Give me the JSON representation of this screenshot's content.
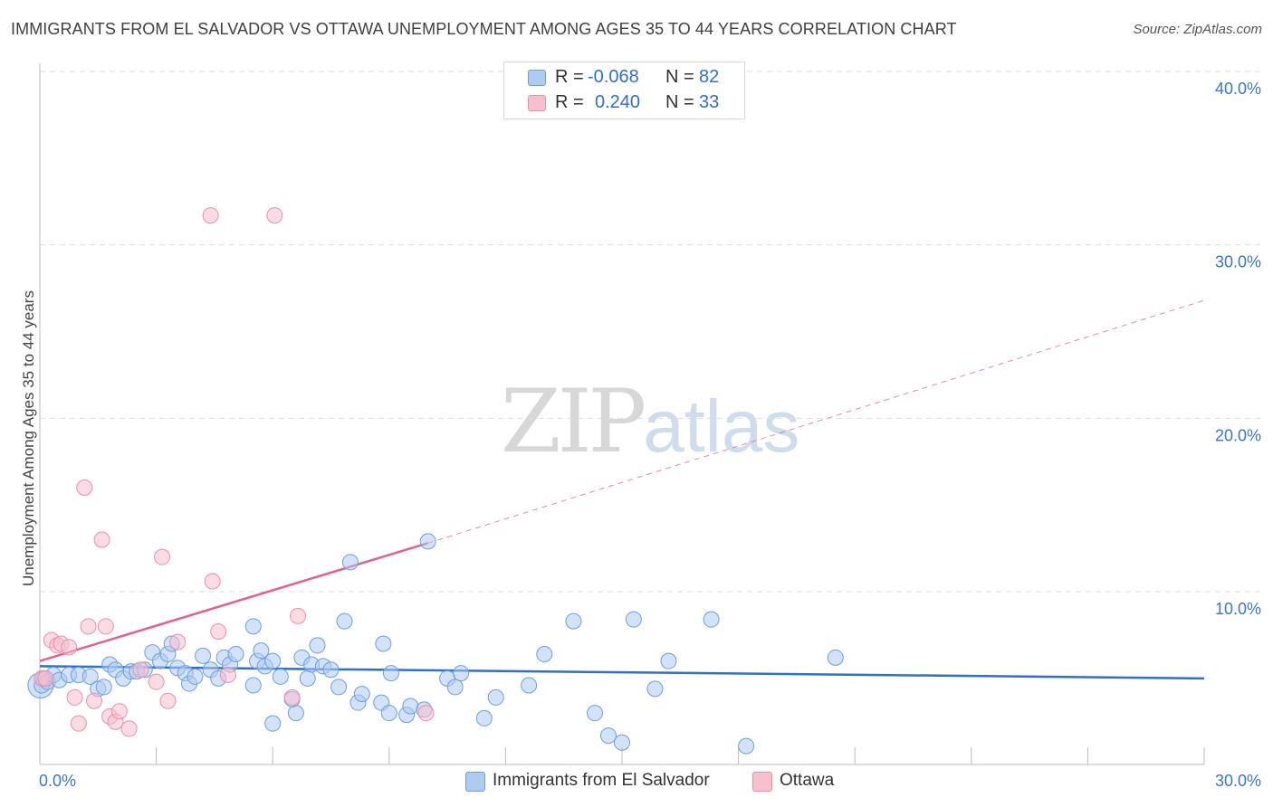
{
  "header": {
    "title": "IMMIGRANTS FROM EL SALVADOR VS OTTAWA UNEMPLOYMENT AMONG AGES 35 TO 44 YEARS CORRELATION CHART",
    "source": "Source: ZipAtlas.com"
  },
  "watermark": {
    "zip": "ZIP",
    "atlas": "atlas"
  },
  "legend_top": {
    "row1": {
      "r_label": "R =",
      "r_value": "-0.068",
      "n_label": "N =",
      "n_value": "82"
    },
    "row2": {
      "r_label": "R =",
      "r_value": "0.240",
      "n_label": "N =",
      "n_value": "33"
    }
  },
  "legend_bottom": {
    "series1": "Immigrants from El Salvador",
    "series2": "Ottawa"
  },
  "colors": {
    "blue_fill": "#aecbf0",
    "blue_stroke": "#6d9fe0",
    "blue_line": "#2f6fcf",
    "pink_fill": "#f7c0cf",
    "pink_stroke": "#eb8fa9",
    "pink_line": "#e4608a",
    "tick_label": "#3a76c9",
    "grid": "#dddddd"
  },
  "chart_data": {
    "type": "scatter",
    "title": "IMMIGRANTS FROM EL SALVADOR VS OTTAWA UNEMPLOYMENT AMONG AGES 35 TO 44 YEARS CORRELATION CHART",
    "xlabel": "",
    "ylabel": "Unemployment Among Ages 35 to 44 years",
    "xlim": [
      0,
      30
    ],
    "ylim": [
      0,
      41
    ],
    "x_tick_labels": [
      "0.0%",
      "30.0%"
    ],
    "y_ticks": [
      10,
      20,
      30,
      40
    ],
    "y_tick_labels": [
      "10.0%",
      "20.0%",
      "30.0%",
      "40.0%"
    ],
    "grid": true,
    "legend_position": "top-center",
    "series": [
      {
        "name": "Immigrants from El Salvador",
        "color": "#aecbf0",
        "trend": {
          "x": [
            0,
            30
          ],
          "y": [
            5.7,
            5.0
          ],
          "style": "solid"
        },
        "points": [
          [
            0.05,
            4.6
          ],
          [
            0.1,
            5.0
          ],
          [
            0.2,
            4.8
          ],
          [
            0.35,
            5.2
          ],
          [
            0.5,
            4.9
          ],
          [
            0.75,
            5.2
          ],
          [
            1.0,
            5.2
          ],
          [
            1.3,
            5.1
          ],
          [
            1.5,
            4.4
          ],
          [
            1.65,
            4.5
          ],
          [
            1.8,
            5.8
          ],
          [
            1.95,
            5.5
          ],
          [
            2.15,
            5.0
          ],
          [
            2.35,
            5.4
          ],
          [
            2.5,
            5.4
          ],
          [
            2.7,
            5.5
          ],
          [
            2.9,
            6.5
          ],
          [
            3.1,
            6.0
          ],
          [
            3.3,
            6.4
          ],
          [
            3.4,
            7.0
          ],
          [
            3.55,
            5.6
          ],
          [
            3.75,
            5.3
          ],
          [
            3.85,
            4.7
          ],
          [
            4.0,
            5.1
          ],
          [
            4.2,
            6.3
          ],
          [
            4.4,
            5.5
          ],
          [
            4.6,
            5.0
          ],
          [
            4.75,
            6.2
          ],
          [
            4.9,
            5.8
          ],
          [
            5.05,
            6.4
          ],
          [
            5.5,
            4.6
          ],
          [
            5.5,
            8.0
          ],
          [
            5.6,
            6.0
          ],
          [
            5.7,
            6.6
          ],
          [
            5.8,
            5.7
          ],
          [
            6.0,
            6.0
          ],
          [
            6.0,
            2.4
          ],
          [
            6.2,
            5.1
          ],
          [
            6.6,
            3.0
          ],
          [
            6.5,
            3.8
          ],
          [
            6.75,
            6.2
          ],
          [
            6.9,
            5.0
          ],
          [
            7.0,
            5.8
          ],
          [
            7.15,
            6.9
          ],
          [
            7.3,
            5.7
          ],
          [
            7.5,
            5.5
          ],
          [
            7.7,
            4.5
          ],
          [
            7.85,
            8.3
          ],
          [
            8.0,
            11.7
          ],
          [
            8.2,
            3.6
          ],
          [
            8.3,
            4.1
          ],
          [
            8.8,
            3.6
          ],
          [
            8.85,
            7.0
          ],
          [
            9.0,
            3.0
          ],
          [
            9.05,
            5.3
          ],
          [
            9.45,
            2.9
          ],
          [
            9.55,
            3.4
          ],
          [
            9.9,
            3.2
          ],
          [
            10.0,
            12.9
          ],
          [
            10.5,
            5.0
          ],
          [
            10.7,
            4.5
          ],
          [
            10.85,
            5.3
          ],
          [
            11.45,
            2.7
          ],
          [
            11.75,
            3.9
          ],
          [
            12.6,
            4.6
          ],
          [
            13.0,
            6.4
          ],
          [
            13.75,
            8.3
          ],
          [
            14.3,
            3.0
          ],
          [
            14.65,
            1.7
          ],
          [
            15.0,
            1.3
          ],
          [
            15.3,
            8.4
          ],
          [
            15.85,
            4.4
          ],
          [
            16.2,
            6.0
          ],
          [
            17.3,
            8.4
          ],
          [
            18.2,
            1.1
          ],
          [
            20.5,
            6.2
          ]
        ]
      },
      {
        "name": "Ottawa",
        "color": "#f7c0cf",
        "trend": {
          "x": [
            0,
            10
          ],
          "y": [
            6.0,
            12.8
          ],
          "style": "solid",
          "extension": {
            "x": [
              10,
              30
            ],
            "y": [
              12.8,
              26.8
            ],
            "style": "dashed"
          }
        },
        "points": [
          [
            0.05,
            5.0
          ],
          [
            0.15,
            5.0
          ],
          [
            0.3,
            7.2
          ],
          [
            0.45,
            6.9
          ],
          [
            0.55,
            7.0
          ],
          [
            0.75,
            6.8
          ],
          [
            0.9,
            3.9
          ],
          [
            1.0,
            2.4
          ],
          [
            1.15,
            16.0
          ],
          [
            1.25,
            8.0
          ],
          [
            1.4,
            3.7
          ],
          [
            1.6,
            13.0
          ],
          [
            1.7,
            8.0
          ],
          [
            1.8,
            2.8
          ],
          [
            1.95,
            2.5
          ],
          [
            2.05,
            3.1
          ],
          [
            2.3,
            2.1
          ],
          [
            2.6,
            5.5
          ],
          [
            3.0,
            4.8
          ],
          [
            3.15,
            12.0
          ],
          [
            3.3,
            3.7
          ],
          [
            3.55,
            7.1
          ],
          [
            4.4,
            31.7
          ],
          [
            4.45,
            10.6
          ],
          [
            4.6,
            7.7
          ],
          [
            4.85,
            5.2
          ],
          [
            6.05,
            31.7
          ],
          [
            6.5,
            3.9
          ],
          [
            6.65,
            8.6
          ],
          [
            9.95,
            3.0
          ]
        ]
      }
    ]
  }
}
